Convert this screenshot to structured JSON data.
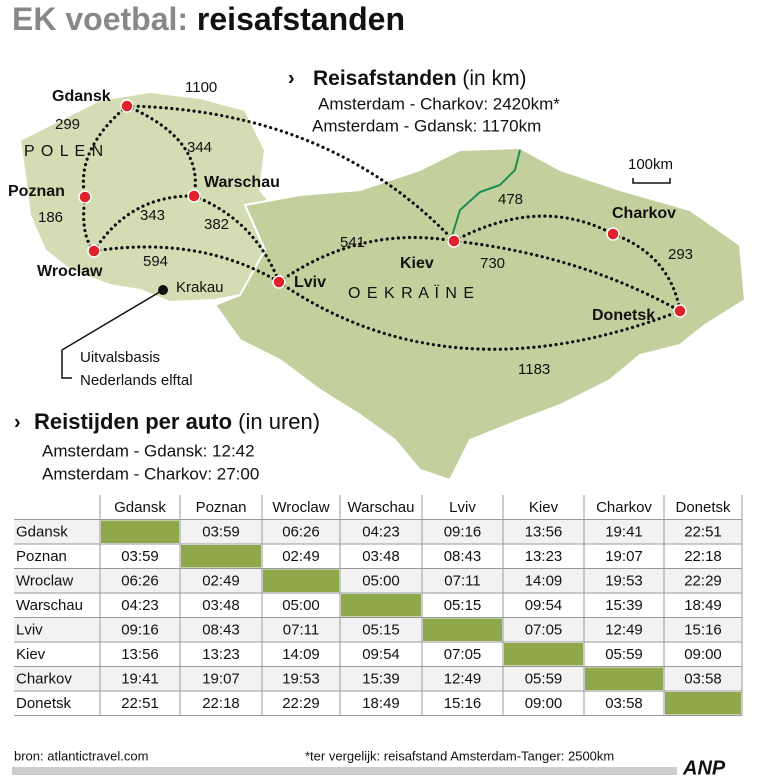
{
  "title": {
    "prefix": "EK voetbal:",
    "main": "reisafstanden"
  },
  "distance_box": {
    "heading": "Reisafstanden",
    "unit": "(in km)",
    "lines": [
      "Amsterdam - Charkov: 2420km*",
      "Amsterdam - Gdansk: 1170km"
    ]
  },
  "map": {
    "cities": [
      "Gdansk",
      "Poznan",
      "Wroclaw",
      "Warschau",
      "Lviv",
      "Kiev",
      "Charkov",
      "Donetsk"
    ],
    "distances": [
      1100,
      299,
      344,
      186,
      343,
      382,
      594,
      541,
      478,
      730,
      293,
      1183
    ],
    "countries": [
      "P O L E N",
      "O E K R A Ï N E"
    ],
    "scale": "100km",
    "krakau": "Krakau",
    "note": [
      "Uitvalsbasis",
      "Nederlands elftal"
    ]
  },
  "time_box": {
    "heading": "Reistijden per auto",
    "unit": "(in uren)",
    "lines": [
      "Amsterdam - Gdansk: 12:42",
      "Amsterdam - Charkov: 27:00"
    ]
  },
  "table": {
    "columns": [
      "Gdansk",
      "Poznan",
      "Wroclaw",
      "Warschau",
      "Lviv",
      "Kiev",
      "Charkov",
      "Donetsk"
    ],
    "rows": [
      [
        "Gdansk",
        null,
        "03:59",
        "06:26",
        "04:23",
        "09:16",
        "13:56",
        "19:41",
        "22:51"
      ],
      [
        "Poznan",
        "03:59",
        null,
        "02:49",
        "03:48",
        "08:43",
        "13:23",
        "19:07",
        "22:18"
      ],
      [
        "Wroclaw",
        "06:26",
        "02:49",
        null,
        "05:00",
        "07:11",
        "14:09",
        "19:53",
        "22:29"
      ],
      [
        "Warschau",
        "04:23",
        "03:48",
        "05:00",
        null,
        "05:15",
        "09:54",
        "15:39",
        "18:49"
      ],
      [
        "Lviv",
        "09:16",
        "08:43",
        "07:11",
        "05:15",
        null,
        "07:05",
        "12:49",
        "15:16"
      ],
      [
        "Kiev",
        "13:56",
        "13:23",
        "14:09",
        "09:54",
        "07:05",
        null,
        "05:59",
        "09:00"
      ],
      [
        "Charkov",
        "19:41",
        "19:07",
        "19:53",
        "15:39",
        "12:49",
        "05:59",
        null,
        "03:58"
      ],
      [
        "Donetsk",
        "22:51",
        "22:18",
        "22:29",
        "18:49",
        "15:16",
        "09:00",
        "03:58",
        null
      ]
    ]
  },
  "footer": {
    "source": "bron: atlantictravel.com",
    "note": "*ter vergelijk: reisafstand Amsterdam-Tanger: 2500km",
    "logo": "ANP"
  }
}
